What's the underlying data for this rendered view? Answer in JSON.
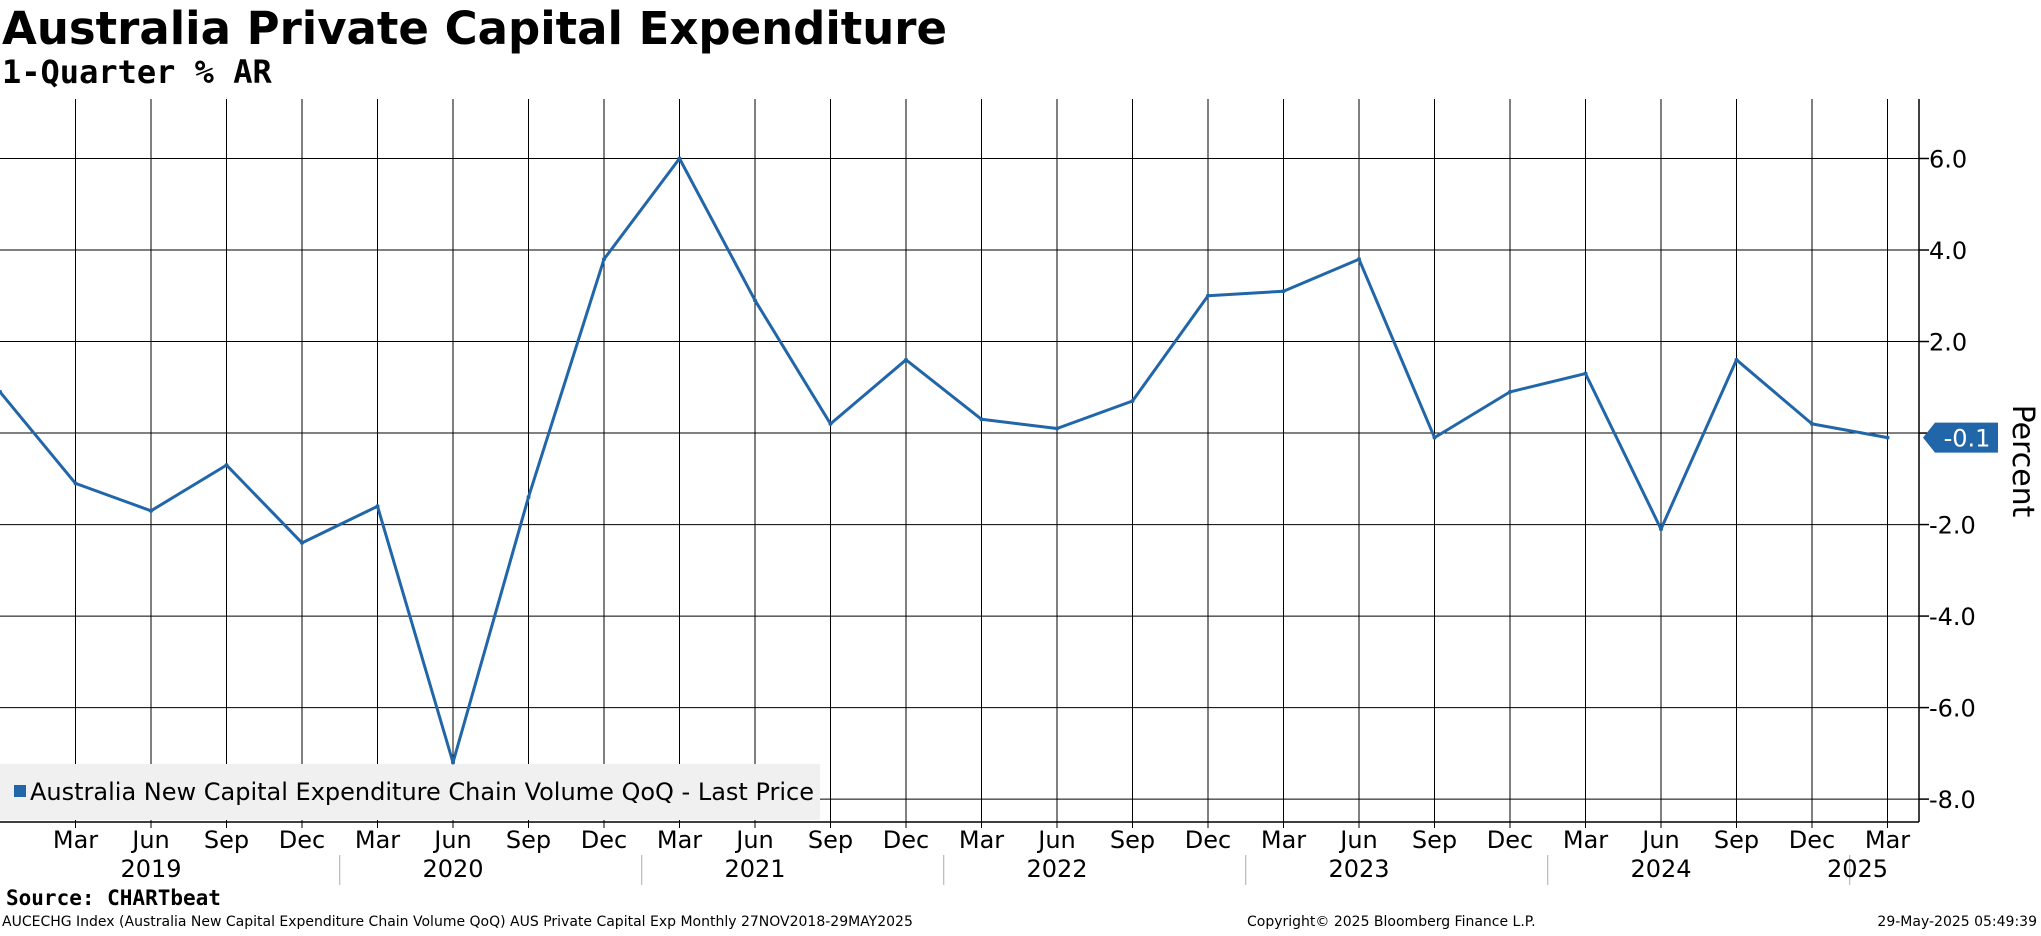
{
  "header": {
    "title": "Australia Private Capital Expenditure",
    "subtitle": "1-Quarter % AR"
  },
  "footer": {
    "source": "Source: CHARTbeat",
    "description": "AUCECHG Index (Australia New Capital Expenditure Chain Volume QoQ) AUS Private Capital Exp  Monthly 27NOV2018-29MAY2025",
    "copyright": "Copyright© 2025 Bloomberg Finance L.P.",
    "timestamp": "29-May-2025 05:49:39"
  },
  "colors": {
    "series": "#2166a8",
    "grid": "#000000",
    "legend_bg": "#f0f0f0",
    "last_value_label_text": "#ffffff"
  },
  "chart_data": {
    "type": "line",
    "title": "Australia Private Capital Expenditure",
    "subtitle": "1-Quarter % AR",
    "ylabel": "Percent",
    "y_axis_side": "right",
    "ylim": [
      -8.5,
      7.3
    ],
    "yticks": [
      6.0,
      4.0,
      2.0,
      0.0,
      -2.0,
      -4.0,
      -6.0,
      -8.0
    ],
    "ytick_labels": [
      "6.0",
      "4.0",
      "2.0",
      "",
      "-2.0",
      "-4.0",
      "-6.0",
      "-8.0"
    ],
    "grid": true,
    "legend_position": "bottom-left",
    "last_value_label": "-0.1",
    "x_month_labels": [
      "Mar",
      "Jun",
      "Sep",
      "Dec",
      "Mar",
      "Jun",
      "Sep",
      "Dec",
      "Mar",
      "Jun",
      "Sep",
      "Dec",
      "Mar",
      "Jun",
      "Sep",
      "Dec",
      "Mar",
      "Jun",
      "Sep",
      "Dec",
      "Mar",
      "Jun",
      "Sep",
      "Dec",
      "Mar"
    ],
    "x_year_labels": [
      "2019",
      "2020",
      "2021",
      "2022",
      "2023",
      "2024",
      "2025"
    ],
    "series": [
      {
        "name": "Australia New Capital Expenditure Chain Volume QoQ - Last Price",
        "x": [
          "Dec 2018",
          "Mar 2019",
          "Jun 2019",
          "Sep 2019",
          "Dec 2019",
          "Mar 2020",
          "Jun 2020",
          "Sep 2020",
          "Dec 2020",
          "Mar 2021",
          "Jun 2021",
          "Sep 2021",
          "Dec 2021",
          "Mar 2022",
          "Jun 2022",
          "Sep 2022",
          "Dec 2022",
          "Mar 2023",
          "Jun 2023",
          "Sep 2023",
          "Dec 2023",
          "Mar 2024",
          "Jun 2024",
          "Sep 2024",
          "Dec 2024",
          "Mar 2025"
        ],
        "values": [
          0.9,
          -1.1,
          -1.7,
          -0.7,
          -2.4,
          -1.6,
          -7.2,
          -1.4,
          3.8,
          6.0,
          2.9,
          0.2,
          1.6,
          0.3,
          0.1,
          0.7,
          3.0,
          3.1,
          3.8,
          -0.1,
          0.9,
          1.3,
          -2.1,
          1.6,
          0.2,
          -0.1
        ]
      }
    ]
  }
}
